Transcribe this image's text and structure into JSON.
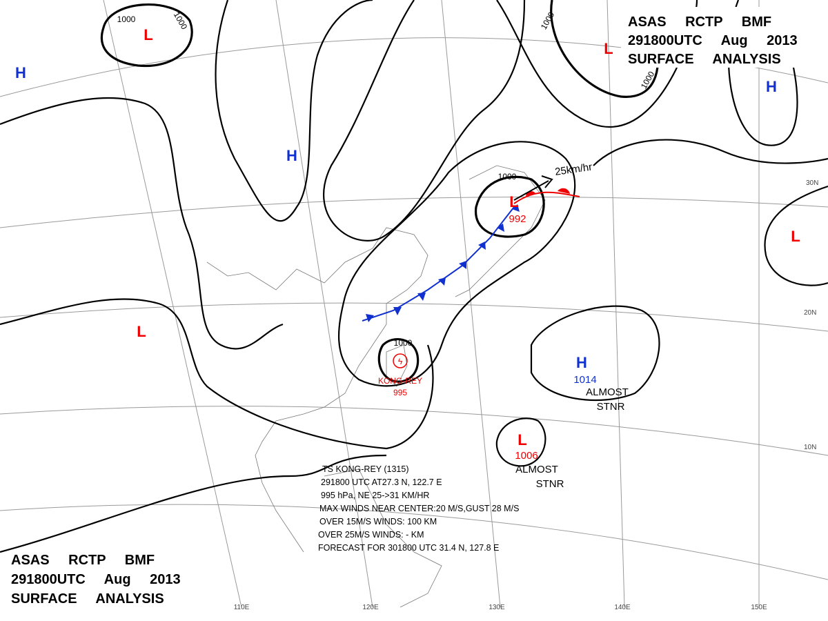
{
  "header": {
    "lines": [
      "ASAS RCTP BMF",
      "291800UTC Aug 2013",
      "SURFACE ANALYSIS"
    ]
  },
  "lows": [
    "L",
    "L",
    "L",
    "L",
    "L",
    "L"
  ],
  "highs": [
    "H",
    "H",
    "H",
    "H"
  ],
  "center_pressures": [
    992,
    1006,
    1014
  ],
  "isobar_labels": [
    1000,
    1000,
    1000,
    1000,
    1000,
    1000
  ],
  "typhoon": {
    "name": "KONG-REY",
    "pressure": 995
  },
  "motion": "25km/hr",
  "stationary_notes": [
    [
      "ALMOST",
      "STNR"
    ],
    [
      "ALMOST",
      "STNR"
    ]
  ],
  "info_box": [
    "TS KONG-REY (1315)",
    "291800 UTC AT27.3 N, 122.7 E",
    "995 hPa, NE 25->31 KM/HR",
    "MAX WINDS NEAR CENTER:20 M/S,GUST 28 M/S",
    "OVER 15M/S WINDS: 100 KM",
    "OVER 25M/S WINDS: - KM",
    "FORECAST FOR 301800 UTC 31.4 N, 127.8 E"
  ],
  "longitude_labels": [
    "110E",
    "120E",
    "130E",
    "140E",
    "150E"
  ],
  "latitude_labels": [
    "30N",
    "20N",
    "10N"
  ]
}
